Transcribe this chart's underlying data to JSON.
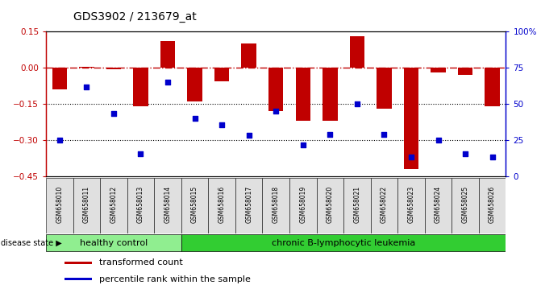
{
  "title": "GDS3902 / 213679_at",
  "samples": [
    "GSM658010",
    "GSM658011",
    "GSM658012",
    "GSM658013",
    "GSM658014",
    "GSM658015",
    "GSM658016",
    "GSM658017",
    "GSM658018",
    "GSM658019",
    "GSM658020",
    "GSM658021",
    "GSM658022",
    "GSM658023",
    "GSM658024",
    "GSM658025",
    "GSM658026"
  ],
  "bar_values": [
    -0.09,
    0.005,
    -0.005,
    -0.16,
    0.11,
    -0.14,
    -0.055,
    0.1,
    -0.18,
    -0.22,
    -0.22,
    0.13,
    -0.17,
    -0.42,
    -0.02,
    -0.03,
    -0.16
  ],
  "dot_values": [
    -0.3,
    -0.08,
    -0.19,
    -0.355,
    -0.06,
    -0.21,
    -0.235,
    -0.28,
    -0.18,
    -0.32,
    -0.275,
    -0.15,
    -0.275,
    -0.37,
    -0.3,
    -0.355,
    -0.37
  ],
  "healthy_count": 5,
  "bar_color": "#c00000",
  "dot_color": "#0000cc",
  "hline_color": "#c00000",
  "dotted_line_color": "#000000",
  "ylim_left": [
    -0.45,
    0.15
  ],
  "ylim_right": [
    0,
    100
  ],
  "right_ticks": [
    0,
    25,
    50,
    75,
    100
  ],
  "right_tick_labels": [
    "0",
    "25",
    "50",
    "75",
    "100%"
  ],
  "left_ticks": [
    -0.45,
    -0.3,
    -0.15,
    0.0,
    0.15
  ],
  "hline_y": 0.0,
  "dotted_lines": [
    -0.15,
    -0.3
  ],
  "healthy_label": "healthy control",
  "disease_label": "chronic B-lymphocytic leukemia",
  "legend_bar_label": "transformed count",
  "legend_dot_label": "percentile rank within the sample",
  "disease_state_label": "disease state",
  "bg_color": "#ffffff",
  "xtick_bg": "#e0e0e0",
  "healthy_bg": "#90ee90",
  "disease_bg": "#32cd32",
  "bar_width": 0.55
}
